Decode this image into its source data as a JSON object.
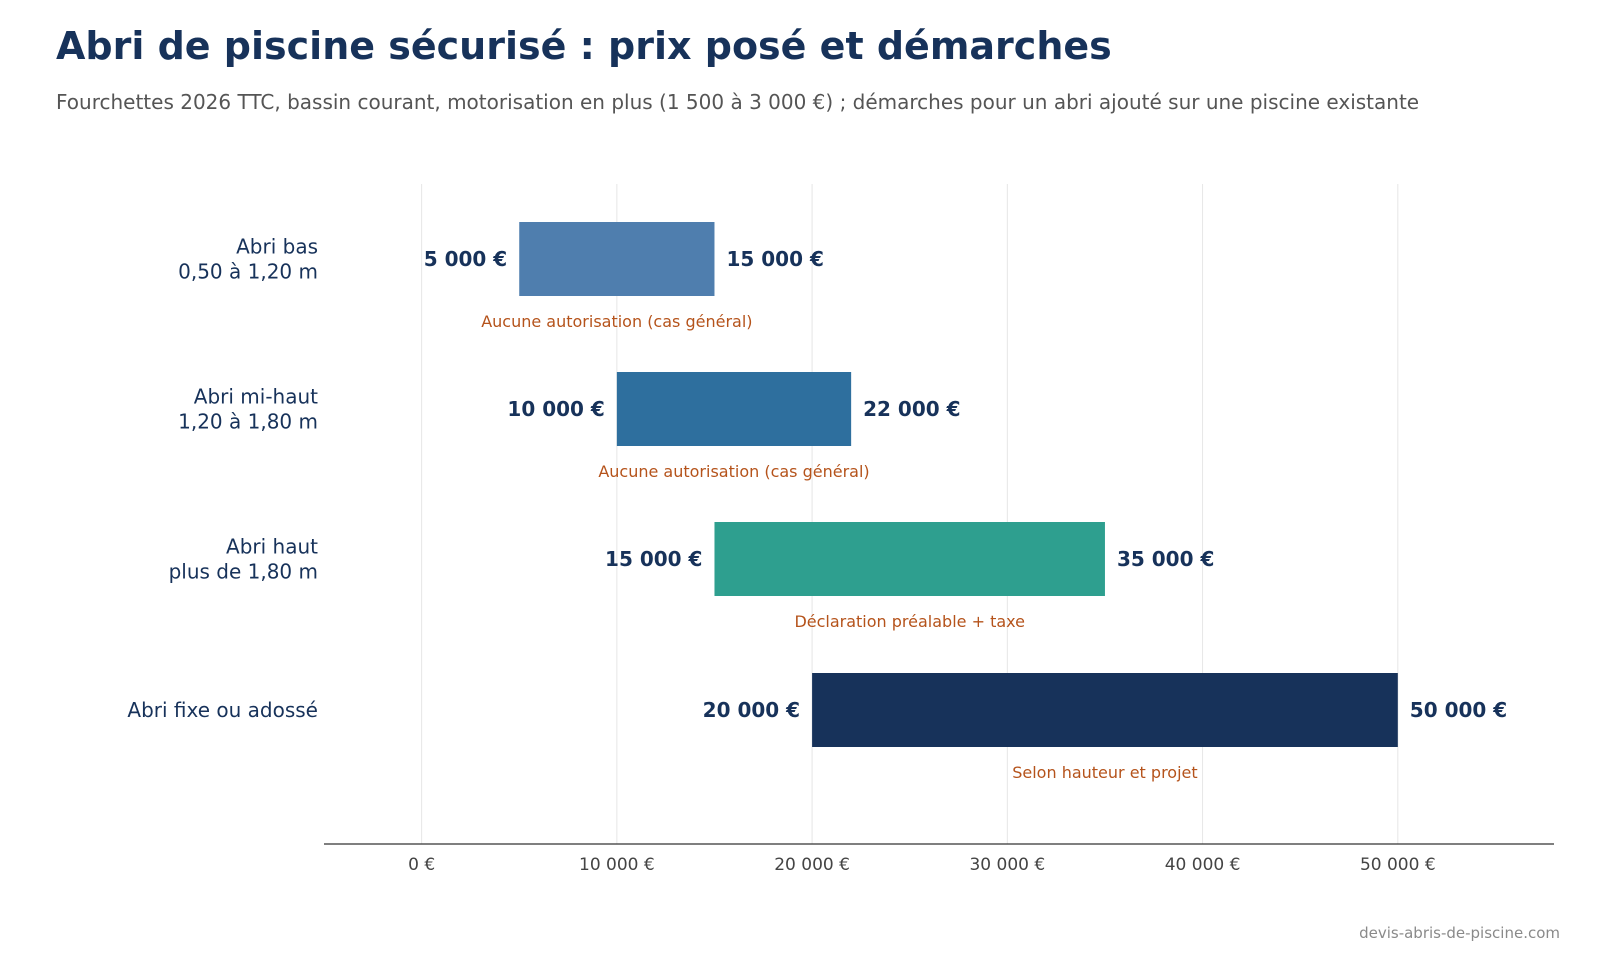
{
  "title": "Abri de piscine sécurisé : prix posé et démarches",
  "subtitle": "Fourchettes 2026 TTC, bassin courant, motorisation en plus (1 500 à 3 000 €) ; démarches pour un abri ajouté sur une piscine existante",
  "footer": "devis-abris-de-piscine.com",
  "colors": {
    "text": "#17325a",
    "note": "#b5531b",
    "grid": "#e6e6e6",
    "axis": "#333333",
    "tick": "#444444"
  },
  "chart_data": {
    "type": "bar",
    "orientation": "horizontal-range",
    "grid": true,
    "xlim": [
      -5000,
      58000
    ],
    "xticks": [
      0,
      10000,
      20000,
      30000,
      40000,
      50000
    ],
    "xtick_labels": [
      "0 €",
      "10 000 €",
      "20 000 €",
      "30 000 €",
      "40 000 €",
      "50 000 €"
    ],
    "rows": [
      {
        "label_lines": [
          "Abri bas",
          "0,50 à 1,20 m"
        ],
        "min": 5000,
        "max": 15000,
        "min_label": "5 000 €",
        "max_label": "15 000 €",
        "note": "Aucune autorisation (cas général)",
        "color": "#4f7eae"
      },
      {
        "label_lines": [
          "Abri mi-haut",
          "1,20 à 1,80 m"
        ],
        "min": 10000,
        "max": 22000,
        "min_label": "10 000 €",
        "max_label": "22 000 €",
        "note": "Aucune autorisation (cas général)",
        "color": "#2e6f9e"
      },
      {
        "label_lines": [
          "Abri haut",
          "plus de 1,80 m"
        ],
        "min": 15000,
        "max": 35000,
        "min_label": "15 000 €",
        "max_label": "35 000 €",
        "note": "Déclaration préalable + taxe",
        "color": "#2e9f8f"
      },
      {
        "label_lines": [
          "Abri fixe ou adossé"
        ],
        "min": 20000,
        "max": 50000,
        "min_label": "20 000 €",
        "max_label": "50 000 €",
        "note": "Selon hauteur et projet",
        "color": "#17325a"
      }
    ]
  }
}
